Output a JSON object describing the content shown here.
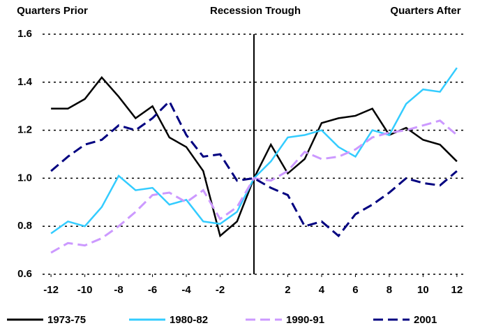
{
  "chart_data": {
    "type": "line",
    "header_left": "Quarters Prior",
    "header_center": "Recession Trough",
    "header_right": "Quarters After",
    "x": [
      -12,
      -11,
      -10,
      -9,
      -8,
      -7,
      -6,
      -5,
      -4,
      -3,
      -2,
      -1,
      0,
      1,
      2,
      3,
      4,
      5,
      6,
      7,
      8,
      9,
      10,
      11,
      12
    ],
    "series": [
      {
        "name": "1973-75",
        "color": "#000000",
        "dash": false,
        "values": [
          1.29,
          1.29,
          1.33,
          1.42,
          1.34,
          1.25,
          1.3,
          1.17,
          1.13,
          1.03,
          0.76,
          0.82,
          1.0,
          1.14,
          1.02,
          1.08,
          1.23,
          1.25,
          1.26,
          1.29,
          1.18,
          1.21,
          1.16,
          1.14,
          1.07
        ]
      },
      {
        "name": "1980-82",
        "color": "#33ccff",
        "dash": false,
        "values": [
          0.77,
          0.82,
          0.8,
          0.88,
          1.01,
          0.95,
          0.96,
          0.89,
          0.91,
          0.82,
          0.81,
          0.86,
          1.0,
          1.07,
          1.17,
          1.18,
          1.2,
          1.13,
          1.09,
          1.2,
          1.18,
          1.31,
          1.37,
          1.36,
          1.46
        ]
      },
      {
        "name": "1990-91",
        "color": "#cc99ff",
        "dash": true,
        "values": [
          0.69,
          0.73,
          0.72,
          0.75,
          0.8,
          0.86,
          0.93,
          0.94,
          0.9,
          0.95,
          0.83,
          0.88,
          1.0,
          0.99,
          1.03,
          1.11,
          1.08,
          1.09,
          1.12,
          1.17,
          1.19,
          1.2,
          1.22,
          1.24,
          1.18
        ]
      },
      {
        "name": "2001",
        "color": "#000080",
        "dash": true,
        "values": [
          1.03,
          1.09,
          1.14,
          1.16,
          1.22,
          1.2,
          1.25,
          1.32,
          1.18,
          1.09,
          1.1,
          0.99,
          1.0,
          0.96,
          0.93,
          0.8,
          0.82,
          0.76,
          0.85,
          0.89,
          0.94,
          1.0,
          0.98,
          0.97,
          1.03
        ]
      }
    ],
    "xlim": [
      -12.5,
      12.5
    ],
    "xticks": [
      -12,
      -10,
      -8,
      -6,
      -4,
      -2,
      2,
      4,
      6,
      8,
      10,
      12
    ],
    "ylim": [
      0.6,
      1.6
    ],
    "yticks": [
      {
        "value": 0.6,
        "label": "0.6"
      },
      {
        "value": 0.8,
        "label": "0.8"
      },
      {
        "value": 1.0,
        "label": "1.0"
      },
      {
        "value": 1.2,
        "label": "1.2"
      },
      {
        "value": 1.4,
        "label": "1.4"
      },
      {
        "value": 1.6,
        "label": "1.6"
      }
    ],
    "grid": true,
    "legend": "bottom"
  }
}
